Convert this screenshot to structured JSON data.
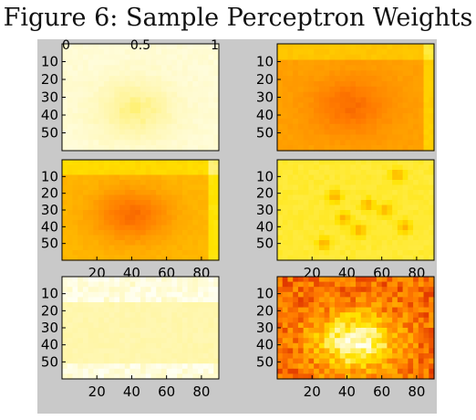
{
  "title": "Figure 6: Sample Perceptron Weights",
  "colors": {
    "figure_background": "#c9c9c9",
    "colormap": "hot",
    "colormap_stops": [
      "#b30000",
      "#e23a00",
      "#ff7a00",
      "#ffb000",
      "#ffe400",
      "#fff5a0",
      "#fffff2"
    ]
  },
  "chart_data": [
    {
      "type": "heatmap",
      "panel": "top-left",
      "description_level_map": "mostly very pale yellow/white with a faint yellow blob near the centre",
      "base_level": 0.94,
      "blob": {
        "cx": 42,
        "cy": 37,
        "level": 0.8
      },
      "xlim": [
        0,
        90
      ],
      "ylim": [
        0,
        60
      ],
      "top_ticks": [
        "0",
        "0.5",
        "1"
      ],
      "y_ticks": [
        "10",
        "20",
        "30",
        "40",
        "50"
      ],
      "x_ticks": []
    },
    {
      "type": "heatmap",
      "panel": "top-right",
      "base_level": 0.45,
      "blob": {
        "cx": 42,
        "cy": 35,
        "level": 0.3
      },
      "xlim": [
        0,
        90
      ],
      "ylim": [
        0,
        60
      ],
      "y_ticks": [
        "10",
        "20",
        "30",
        "40",
        "50"
      ],
      "x_ticks": []
    },
    {
      "type": "heatmap",
      "panel": "middle-left",
      "base_level": 0.52,
      "blob": {
        "cx": 40,
        "cy": 33,
        "level": 0.3
      },
      "xlim": [
        0,
        90
      ],
      "ylim": [
        0,
        60
      ],
      "x_ticks": [
        "20",
        "40",
        "60",
        "80"
      ],
      "y_ticks": [
        "10",
        "20",
        "30",
        "40",
        "50"
      ]
    },
    {
      "type": "heatmap",
      "panel": "middle-right",
      "base_level": 0.72,
      "spots": [
        {
          "cx": 33,
          "cy": 22
        },
        {
          "cx": 38,
          "cy": 35
        },
        {
          "cx": 47,
          "cy": 42
        },
        {
          "cx": 52,
          "cy": 27
        },
        {
          "cx": 62,
          "cy": 30
        },
        {
          "cx": 69,
          "cy": 9
        },
        {
          "cx": 73,
          "cy": 40
        },
        {
          "cx": 27,
          "cy": 50
        }
      ],
      "xlim": [
        0,
        90
      ],
      "ylim": [
        0,
        60
      ],
      "x_ticks": [
        "20",
        "40",
        "60",
        "80"
      ],
      "y_ticks": [
        "10",
        "20",
        "30",
        "40",
        "50"
      ]
    },
    {
      "type": "heatmap",
      "panel": "bottom-left",
      "base_level": 0.86,
      "bright_regions": "pale white patches near the top and the bottom",
      "xlim": [
        0,
        90
      ],
      "ylim": [
        0,
        60
      ],
      "x_ticks": [
        "20",
        "40",
        "60",
        "80"
      ],
      "y_ticks": [
        "10",
        "20",
        "30",
        "40",
        "50"
      ]
    },
    {
      "type": "heatmap",
      "panel": "bottom-right",
      "base_level": 0.3,
      "blob": {
        "cx": 45,
        "cy": 38,
        "level": 0.92
      },
      "noisy": true,
      "xlim": [
        0,
        90
      ],
      "ylim": [
        0,
        60
      ],
      "x_ticks": [
        "20",
        "40",
        "60",
        "80"
      ],
      "y_ticks": [
        "10",
        "20",
        "30",
        "40",
        "50"
      ]
    }
  ]
}
